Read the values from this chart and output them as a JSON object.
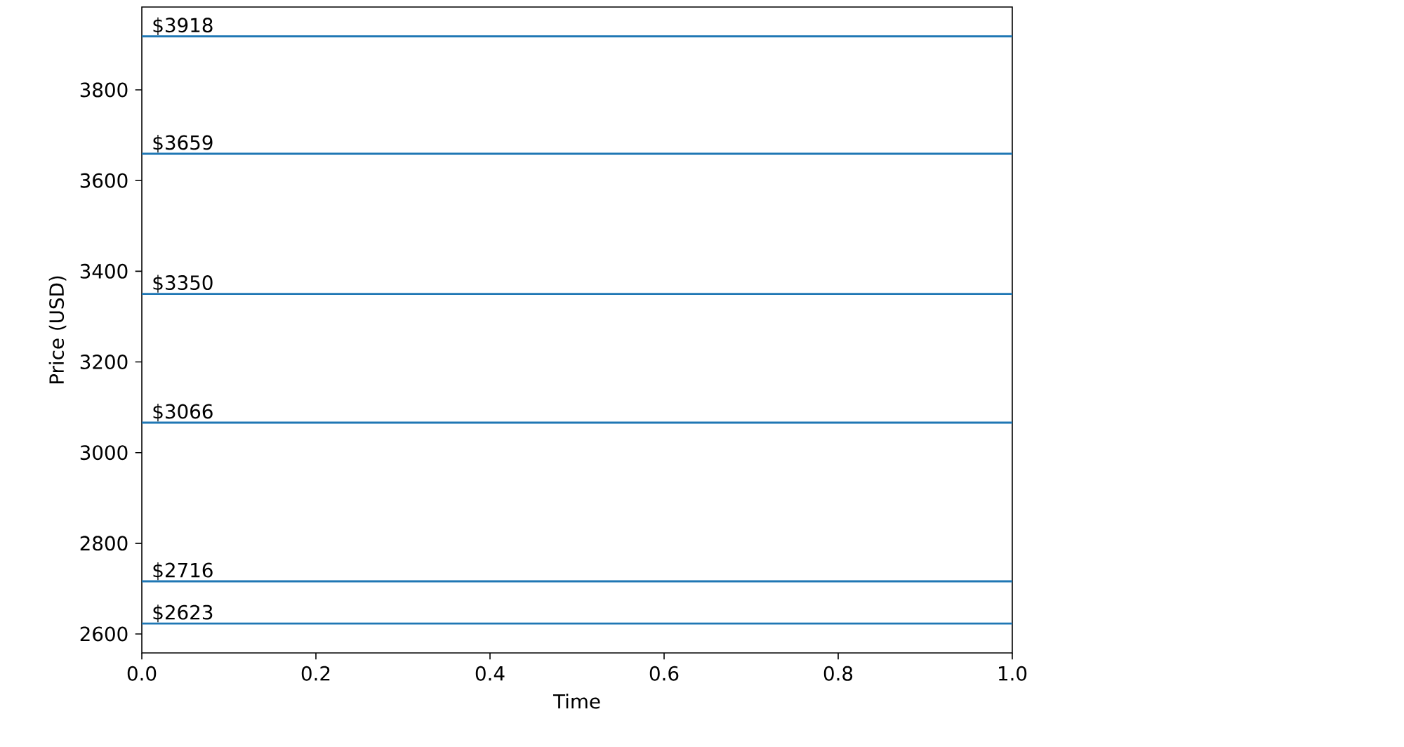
{
  "chart_data": {
    "type": "line",
    "xlabel": "Time",
    "ylabel": "Price (USD)",
    "xlim": [
      0,
      1
    ],
    "ylim": [
      2558.25,
      3982.75
    ],
    "xticks": [
      {
        "value": 0,
        "label": "0.0"
      },
      {
        "value": 0.2,
        "label": "0.2"
      },
      {
        "value": 0.4,
        "label": "0.4"
      },
      {
        "value": 0.6,
        "label": "0.6"
      },
      {
        "value": 0.8,
        "label": "0.8"
      },
      {
        "value": 1,
        "label": "1.0"
      }
    ],
    "yticks": [
      2600,
      2800,
      3000,
      3200,
      3400,
      3600,
      3800
    ],
    "ref_lines": [
      {
        "axis": "y",
        "value": 3918,
        "label": "$3918",
        "color": "#1f77b4"
      },
      {
        "axis": "y",
        "value": 3659,
        "label": "$3659",
        "color": "#1f77b4"
      },
      {
        "axis": "y",
        "value": 3350,
        "label": "$3350",
        "color": "#1f77b4"
      },
      {
        "axis": "y",
        "value": 3066,
        "label": "$3066",
        "color": "#1f77b4"
      },
      {
        "axis": "y",
        "value": 2716,
        "label": "$2716",
        "color": "#1f77b4"
      },
      {
        "axis": "y",
        "value": 2623,
        "label": "$2623",
        "color": "#1f77b4"
      }
    ]
  }
}
